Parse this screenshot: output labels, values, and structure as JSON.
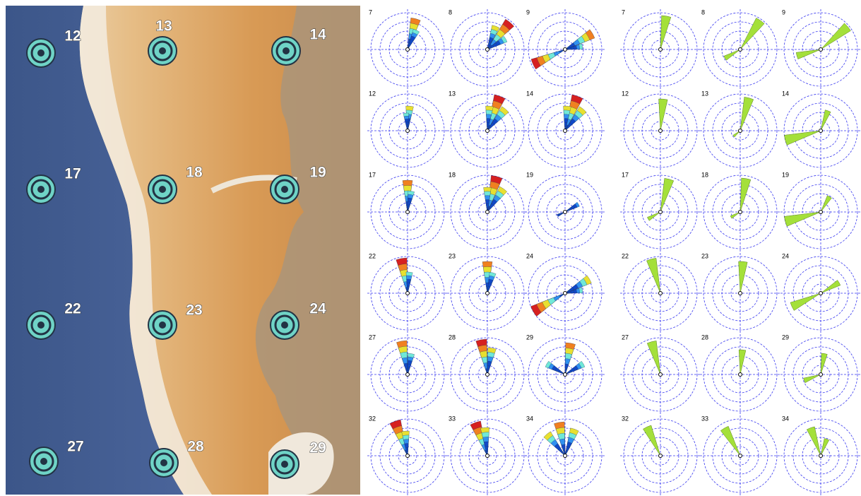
{
  "map": {
    "stations": [
      {
        "label": "12"
      },
      {
        "label": "13"
      },
      {
        "label": "14"
      },
      {
        "label": "17"
      },
      {
        "label": "18"
      },
      {
        "label": "19"
      },
      {
        "label": "22"
      },
      {
        "label": "23"
      },
      {
        "label": "24"
      },
      {
        "label": "27"
      },
      {
        "label": "28"
      },
      {
        "label": "29"
      }
    ]
  },
  "roses_left": {
    "panels": [
      {
        "label": "7"
      },
      {
        "label": "8"
      },
      {
        "label": "9"
      },
      {
        "label": "12"
      },
      {
        "label": "13"
      },
      {
        "label": "14"
      },
      {
        "label": "17"
      },
      {
        "label": "18"
      },
      {
        "label": "19"
      },
      {
        "label": "22"
      },
      {
        "label": "23"
      },
      {
        "label": "24"
      },
      {
        "label": "27"
      },
      {
        "label": "28"
      },
      {
        "label": "29"
      },
      {
        "label": "32"
      },
      {
        "label": "33"
      },
      {
        "label": "34"
      }
    ]
  },
  "roses_right": {
    "panels": [
      {
        "label": "7"
      },
      {
        "label": "8"
      },
      {
        "label": "9"
      },
      {
        "label": "12"
      },
      {
        "label": "13"
      },
      {
        "label": "14"
      },
      {
        "label": "17"
      },
      {
        "label": "18"
      },
      {
        "label": "19"
      },
      {
        "label": "22"
      },
      {
        "label": "23"
      },
      {
        "label": "24"
      },
      {
        "label": "27"
      },
      {
        "label": "28"
      },
      {
        "label": "29"
      },
      {
        "label": "32"
      },
      {
        "label": "33"
      },
      {
        "label": "34"
      }
    ]
  }
}
